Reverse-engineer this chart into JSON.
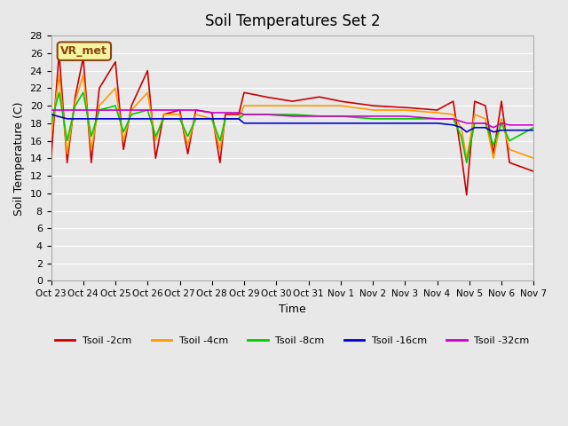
{
  "title": "Soil Temperatures Set 2",
  "xlabel": "Time",
  "ylabel": "Soil Temperature (C)",
  "ylim": [
    0,
    28
  ],
  "yticks": [
    0,
    2,
    4,
    6,
    8,
    10,
    12,
    14,
    16,
    18,
    20,
    22,
    24,
    26,
    28
  ],
  "background_color": "#e8e8e8",
  "grid_color": "#ffffff",
  "colors": {
    "2cm": "#cc0000",
    "4cm": "#ff9900",
    "8cm": "#00cc00",
    "16cm": "#0000cc",
    "32cm": "#cc00cc"
  },
  "legend_labels": [
    "Tsoil -2cm",
    "Tsoil -4cm",
    "Tsoil -8cm",
    "Tsoil -16cm",
    "Tsoil -32cm"
  ],
  "annotation_text": "VR_met",
  "x_tick_positions": [
    0,
    24,
    48,
    72,
    96,
    120,
    144,
    168,
    192,
    216,
    240,
    264,
    288,
    312,
    336,
    360
  ],
  "x_tick_labels": [
    "Oct 23",
    "Oct 24",
    "Oct 25",
    "Oct 26",
    "Oct 27",
    "Oct 28",
    "Oct 29",
    "Oct 30",
    "Oct 31",
    "Nov 1",
    "Nov 2",
    "Nov 3",
    "Nov 4",
    "Nov 5",
    "Nov 6",
    "Nov 7"
  ],
  "xlim": [
    0,
    360
  ],
  "kp_2cm": [
    [
      0,
      14
    ],
    [
      6,
      26
    ],
    [
      12,
      13.5
    ],
    [
      18,
      21
    ],
    [
      24,
      25.5
    ],
    [
      30,
      13.5
    ],
    [
      36,
      22
    ],
    [
      48,
      25
    ],
    [
      54,
      15
    ],
    [
      60,
      20
    ],
    [
      72,
      24
    ],
    [
      78,
      14
    ],
    [
      84,
      19
    ],
    [
      96,
      19.5
    ],
    [
      102,
      14.5
    ],
    [
      108,
      19.5
    ],
    [
      120,
      19.2
    ],
    [
      126,
      13.5
    ],
    [
      130,
      19
    ],
    [
      140,
      19
    ],
    [
      144,
      21.5
    ],
    [
      160,
      21
    ],
    [
      180,
      20.5
    ],
    [
      200,
      21
    ],
    [
      216,
      20.5
    ],
    [
      240,
      20
    ],
    [
      264,
      19.8
    ],
    [
      288,
      19.5
    ],
    [
      300,
      20.5
    ],
    [
      306,
      14.5
    ],
    [
      310,
      9.8
    ],
    [
      316,
      20.5
    ],
    [
      324,
      20
    ],
    [
      330,
      14.5
    ],
    [
      336,
      20.5
    ],
    [
      342,
      13.5
    ],
    [
      360,
      12.5
    ]
  ],
  "kp_4cm": [
    [
      0,
      16.5
    ],
    [
      6,
      23.5
    ],
    [
      12,
      14.5
    ],
    [
      18,
      20.5
    ],
    [
      24,
      23.5
    ],
    [
      30,
      15
    ],
    [
      36,
      20
    ],
    [
      48,
      22
    ],
    [
      54,
      16
    ],
    [
      60,
      19.5
    ],
    [
      72,
      21.5
    ],
    [
      78,
      16
    ],
    [
      84,
      19
    ],
    [
      96,
      19
    ],
    [
      102,
      15.5
    ],
    [
      108,
      19
    ],
    [
      120,
      18.5
    ],
    [
      126,
      15
    ],
    [
      130,
      18.5
    ],
    [
      140,
      18.5
    ],
    [
      144,
      20
    ],
    [
      160,
      20
    ],
    [
      180,
      20
    ],
    [
      200,
      20
    ],
    [
      216,
      20
    ],
    [
      240,
      19.5
    ],
    [
      264,
      19.5
    ],
    [
      288,
      19.2
    ],
    [
      300,
      19
    ],
    [
      306,
      17.5
    ],
    [
      310,
      14
    ],
    [
      316,
      19
    ],
    [
      324,
      18.5
    ],
    [
      330,
      14
    ],
    [
      336,
      18.5
    ],
    [
      342,
      15
    ],
    [
      360,
      14
    ]
  ],
  "kp_8cm": [
    [
      0,
      18
    ],
    [
      6,
      21.5
    ],
    [
      12,
      16
    ],
    [
      18,
      20
    ],
    [
      24,
      21.5
    ],
    [
      30,
      16.5
    ],
    [
      36,
      19.5
    ],
    [
      48,
      20
    ],
    [
      54,
      17
    ],
    [
      60,
      19
    ],
    [
      72,
      19.5
    ],
    [
      78,
      16.5
    ],
    [
      84,
      18.5
    ],
    [
      96,
      18.5
    ],
    [
      102,
      16.5
    ],
    [
      108,
      18.5
    ],
    [
      120,
      18.5
    ],
    [
      126,
      16
    ],
    [
      130,
      18.5
    ],
    [
      140,
      18.5
    ],
    [
      144,
      19
    ],
    [
      160,
      19
    ],
    [
      180,
      19
    ],
    [
      200,
      18.8
    ],
    [
      216,
      18.8
    ],
    [
      240,
      18.5
    ],
    [
      264,
      18.5
    ],
    [
      288,
      18.5
    ],
    [
      300,
      18.5
    ],
    [
      306,
      16.5
    ],
    [
      310,
      13.5
    ],
    [
      316,
      18
    ],
    [
      324,
      18
    ],
    [
      330,
      15.5
    ],
    [
      336,
      18
    ],
    [
      342,
      16
    ],
    [
      360,
      17.5
    ]
  ],
  "kp_16cm": [
    [
      0,
      19
    ],
    [
      12,
      18.5
    ],
    [
      24,
      18.5
    ],
    [
      36,
      18.5
    ],
    [
      48,
      18.5
    ],
    [
      60,
      18.5
    ],
    [
      72,
      18.5
    ],
    [
      84,
      18.5
    ],
    [
      96,
      18.5
    ],
    [
      108,
      18.5
    ],
    [
      120,
      18.5
    ],
    [
      130,
      18.5
    ],
    [
      140,
      18.5
    ],
    [
      144,
      18
    ],
    [
      160,
      18
    ],
    [
      180,
      18
    ],
    [
      200,
      18
    ],
    [
      216,
      18
    ],
    [
      240,
      18
    ],
    [
      264,
      18
    ],
    [
      288,
      18
    ],
    [
      300,
      17.8
    ],
    [
      306,
      17.5
    ],
    [
      310,
      17
    ],
    [
      316,
      17.5
    ],
    [
      324,
      17.5
    ],
    [
      330,
      17
    ],
    [
      336,
      17.2
    ],
    [
      342,
      17.2
    ],
    [
      360,
      17.2
    ]
  ],
  "kp_32cm": [
    [
      0,
      19.5
    ],
    [
      12,
      19.5
    ],
    [
      24,
      19.5
    ],
    [
      36,
      19.5
    ],
    [
      48,
      19.5
    ],
    [
      60,
      19.5
    ],
    [
      72,
      19.5
    ],
    [
      84,
      19.5
    ],
    [
      96,
      19.5
    ],
    [
      108,
      19.5
    ],
    [
      120,
      19.2
    ],
    [
      130,
      19.2
    ],
    [
      140,
      19.2
    ],
    [
      144,
      19
    ],
    [
      160,
      19
    ],
    [
      180,
      18.8
    ],
    [
      200,
      18.8
    ],
    [
      216,
      18.8
    ],
    [
      240,
      18.8
    ],
    [
      264,
      18.8
    ],
    [
      288,
      18.5
    ],
    [
      300,
      18.5
    ],
    [
      306,
      18.2
    ],
    [
      310,
      18
    ],
    [
      316,
      18
    ],
    [
      324,
      18
    ],
    [
      330,
      17.5
    ],
    [
      336,
      18
    ],
    [
      342,
      17.8
    ],
    [
      360,
      17.8
    ]
  ]
}
